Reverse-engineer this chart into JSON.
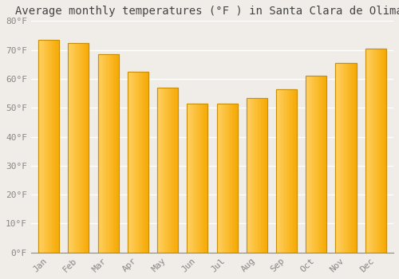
{
  "title": "Average monthly temperatures (°F ) in Santa Clara de Olimar",
  "months": [
    "Jan",
    "Feb",
    "Mar",
    "Apr",
    "May",
    "Jun",
    "Jul",
    "Aug",
    "Sep",
    "Oct",
    "Nov",
    "Dec"
  ],
  "values": [
    73.4,
    72.5,
    68.5,
    62.5,
    57.0,
    51.5,
    51.5,
    53.5,
    56.5,
    61.0,
    65.5,
    70.5
  ],
  "bar_color_left": "#FFD060",
  "bar_color_right": "#F5A800",
  "bar_edge_color": "#C8900A",
  "ylim": [
    0,
    80
  ],
  "yticks": [
    0,
    10,
    20,
    30,
    40,
    50,
    60,
    70,
    80
  ],
  "ytick_labels": [
    "0°F",
    "10°F",
    "20°F",
    "30°F",
    "40°F",
    "50°F",
    "60°F",
    "70°F",
    "80°F"
  ],
  "background_color": "#f0ede8",
  "grid_color": "#ffffff",
  "title_fontsize": 10,
  "tick_fontsize": 8,
  "tick_color": "#888888",
  "font_family": "monospace"
}
